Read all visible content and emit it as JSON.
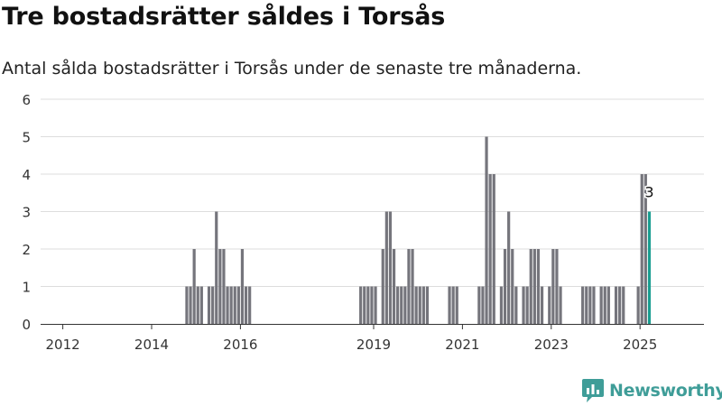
{
  "title": "Tre bostadsrätter såldes i Torsås",
  "subtitle": "Antal sålda bostadsrätter i Torsås under de senaste tre månaderna.",
  "brand": {
    "name": "Newsworthy",
    "color": "#3f9d98"
  },
  "colors": {
    "bar": "#75757c",
    "highlight": "#1a9e91",
    "grid": "#dddddd",
    "axis": "#333333"
  },
  "chart_data": {
    "type": "bar",
    "x_unit": "month",
    "x_start": "2011-07",
    "x_ticks": [
      "2012",
      "2014",
      "2016",
      "2019",
      "2021",
      "2023",
      "2025"
    ],
    "y_ticks": [
      "0",
      "1",
      "2",
      "3",
      "4",
      "5",
      "6"
    ],
    "ylim": [
      0,
      6
    ],
    "grid": true,
    "xlabel": "",
    "ylabel": "",
    "series": [
      {
        "values": [
          {
            "x": "2014-10",
            "y": 1
          },
          {
            "x": "2014-11",
            "y": 1
          },
          {
            "x": "2014-12",
            "y": 2
          },
          {
            "x": "2015-01",
            "y": 1
          },
          {
            "x": "2015-02",
            "y": 1
          },
          {
            "x": "2015-04",
            "y": 1
          },
          {
            "x": "2015-05",
            "y": 1
          },
          {
            "x": "2015-06",
            "y": 3
          },
          {
            "x": "2015-07",
            "y": 2
          },
          {
            "x": "2015-08",
            "y": 2
          },
          {
            "x": "2015-09",
            "y": 1
          },
          {
            "x": "2015-10",
            "y": 1
          },
          {
            "x": "2015-11",
            "y": 1
          },
          {
            "x": "2015-12",
            "y": 1
          },
          {
            "x": "2016-01",
            "y": 2
          },
          {
            "x": "2016-02",
            "y": 1
          },
          {
            "x": "2016-03",
            "y": 1
          },
          {
            "x": "2018-09",
            "y": 1
          },
          {
            "x": "2018-10",
            "y": 1
          },
          {
            "x": "2018-11",
            "y": 1
          },
          {
            "x": "2018-12",
            "y": 1
          },
          {
            "x": "2019-01",
            "y": 1
          },
          {
            "x": "2019-03",
            "y": 2
          },
          {
            "x": "2019-04",
            "y": 3
          },
          {
            "x": "2019-05",
            "y": 3
          },
          {
            "x": "2019-06",
            "y": 2
          },
          {
            "x": "2019-07",
            "y": 1
          },
          {
            "x": "2019-08",
            "y": 1
          },
          {
            "x": "2019-09",
            "y": 1
          },
          {
            "x": "2019-10",
            "y": 2
          },
          {
            "x": "2019-11",
            "y": 2
          },
          {
            "x": "2019-12",
            "y": 1
          },
          {
            "x": "2020-01",
            "y": 1
          },
          {
            "x": "2020-02",
            "y": 1
          },
          {
            "x": "2020-03",
            "y": 1
          },
          {
            "x": "2020-09",
            "y": 1
          },
          {
            "x": "2020-10",
            "y": 1
          },
          {
            "x": "2020-11",
            "y": 1
          },
          {
            "x": "2021-05",
            "y": 1
          },
          {
            "x": "2021-06",
            "y": 1
          },
          {
            "x": "2021-07",
            "y": 5
          },
          {
            "x": "2021-08",
            "y": 4
          },
          {
            "x": "2021-09",
            "y": 4
          },
          {
            "x": "2021-11",
            "y": 1
          },
          {
            "x": "2021-12",
            "y": 2
          },
          {
            "x": "2022-01",
            "y": 3
          },
          {
            "x": "2022-02",
            "y": 2
          },
          {
            "x": "2022-03",
            "y": 1
          },
          {
            "x": "2022-05",
            "y": 1
          },
          {
            "x": "2022-06",
            "y": 1
          },
          {
            "x": "2022-07",
            "y": 2
          },
          {
            "x": "2022-08",
            "y": 2
          },
          {
            "x": "2022-09",
            "y": 2
          },
          {
            "x": "2022-10",
            "y": 1
          },
          {
            "x": "2022-12",
            "y": 1
          },
          {
            "x": "2023-01",
            "y": 2
          },
          {
            "x": "2023-02",
            "y": 2
          },
          {
            "x": "2023-03",
            "y": 1
          },
          {
            "x": "2023-09",
            "y": 1
          },
          {
            "x": "2023-10",
            "y": 1
          },
          {
            "x": "2023-11",
            "y": 1
          },
          {
            "x": "2023-12",
            "y": 1
          },
          {
            "x": "2024-02",
            "y": 1
          },
          {
            "x": "2024-03",
            "y": 1
          },
          {
            "x": "2024-04",
            "y": 1
          },
          {
            "x": "2024-06",
            "y": 1
          },
          {
            "x": "2024-07",
            "y": 1
          },
          {
            "x": "2024-08",
            "y": 1
          },
          {
            "x": "2024-12",
            "y": 1
          },
          {
            "x": "2025-01",
            "y": 4
          },
          {
            "x": "2025-02",
            "y": 4
          },
          {
            "x": "2025-03",
            "y": 3
          }
        ]
      }
    ],
    "highlight": {
      "x": "2025-03",
      "y": 3,
      "label": "3"
    }
  }
}
